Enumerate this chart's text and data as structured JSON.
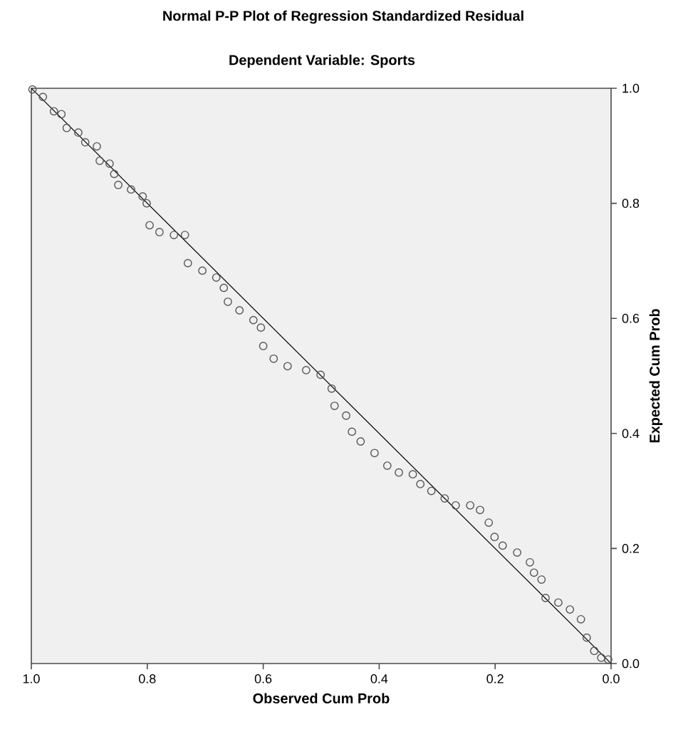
{
  "chart_data": {
    "type": "scatter",
    "title": "Normal P-P Plot of Regression Standardized Residual",
    "subtitle": "Dependent Variable: Sports",
    "xlabel": "Observed Cum Prob",
    "ylabel": "Expected Cum Prob",
    "xlim": [
      1,
      0
    ],
    "ylim": [
      0,
      1
    ],
    "xticks": [
      {
        "value": 0,
        "label": "0.0"
      },
      {
        "value": 0.2,
        "label": "0.2"
      },
      {
        "value": 0.4,
        "label": "0.4"
      },
      {
        "value": 0.6,
        "label": "0.6"
      },
      {
        "value": 0.8,
        "label": "0.8"
      },
      {
        "value": 1,
        "label": "1.0"
      }
    ],
    "yticks": [
      {
        "value": 0,
        "label": "0.0"
      },
      {
        "value": 0.2,
        "label": "0.2"
      },
      {
        "value": 0.4,
        "label": "0.4"
      },
      {
        "value": 0.6,
        "label": "0.6"
      },
      {
        "value": 0.8,
        "label": "0.8"
      },
      {
        "value": 1,
        "label": "1.0"
      }
    ],
    "series": [
      {
        "marker": "circle",
        "color": "#555555",
        "x": [
          0.998,
          0.98,
          0.961,
          0.948,
          0.939,
          0.919,
          0.907,
          0.887,
          0.882,
          0.865,
          0.857,
          0.85,
          0.828,
          0.808,
          0.801,
          0.796,
          0.779,
          0.754,
          0.735,
          0.73,
          0.705,
          0.681,
          0.668,
          0.661,
          0.641,
          0.617,
          0.604,
          0.6,
          0.582,
          0.558,
          0.526,
          0.501,
          0.482,
          0.477,
          0.457,
          0.447,
          0.432,
          0.408,
          0.386,
          0.366,
          0.342,
          0.329,
          0.31,
          0.287,
          0.268,
          0.243,
          0.226,
          0.211,
          0.201,
          0.187,
          0.162,
          0.14,
          0.133,
          0.12,
          0.113,
          0.091,
          0.071,
          0.052,
          0.042,
          0.029,
          0.017,
          0.005
        ],
        "values": [
          0.998,
          0.985,
          0.96,
          0.955,
          0.931,
          0.923,
          0.906,
          0.899,
          0.874,
          0.869,
          0.851,
          0.832,
          0.824,
          0.812,
          0.8,
          0.762,
          0.75,
          0.745,
          0.745,
          0.696,
          0.683,
          0.671,
          0.653,
          0.629,
          0.614,
          0.597,
          0.584,
          0.552,
          0.53,
          0.517,
          0.51,
          0.502,
          0.478,
          0.448,
          0.431,
          0.403,
          0.386,
          0.366,
          0.344,
          0.332,
          0.329,
          0.312,
          0.3,
          0.287,
          0.275,
          0.275,
          0.267,
          0.245,
          0.22,
          0.205,
          0.193,
          0.176,
          0.158,
          0.146,
          0.114,
          0.106,
          0.094,
          0.077,
          0.045,
          0.022,
          0.01,
          0.007
        ]
      },
      {
        "type": "line",
        "marker": "none",
        "color": "#000000",
        "x": [
          0,
          1
        ],
        "values": [
          0,
          1
        ]
      }
    ]
  }
}
